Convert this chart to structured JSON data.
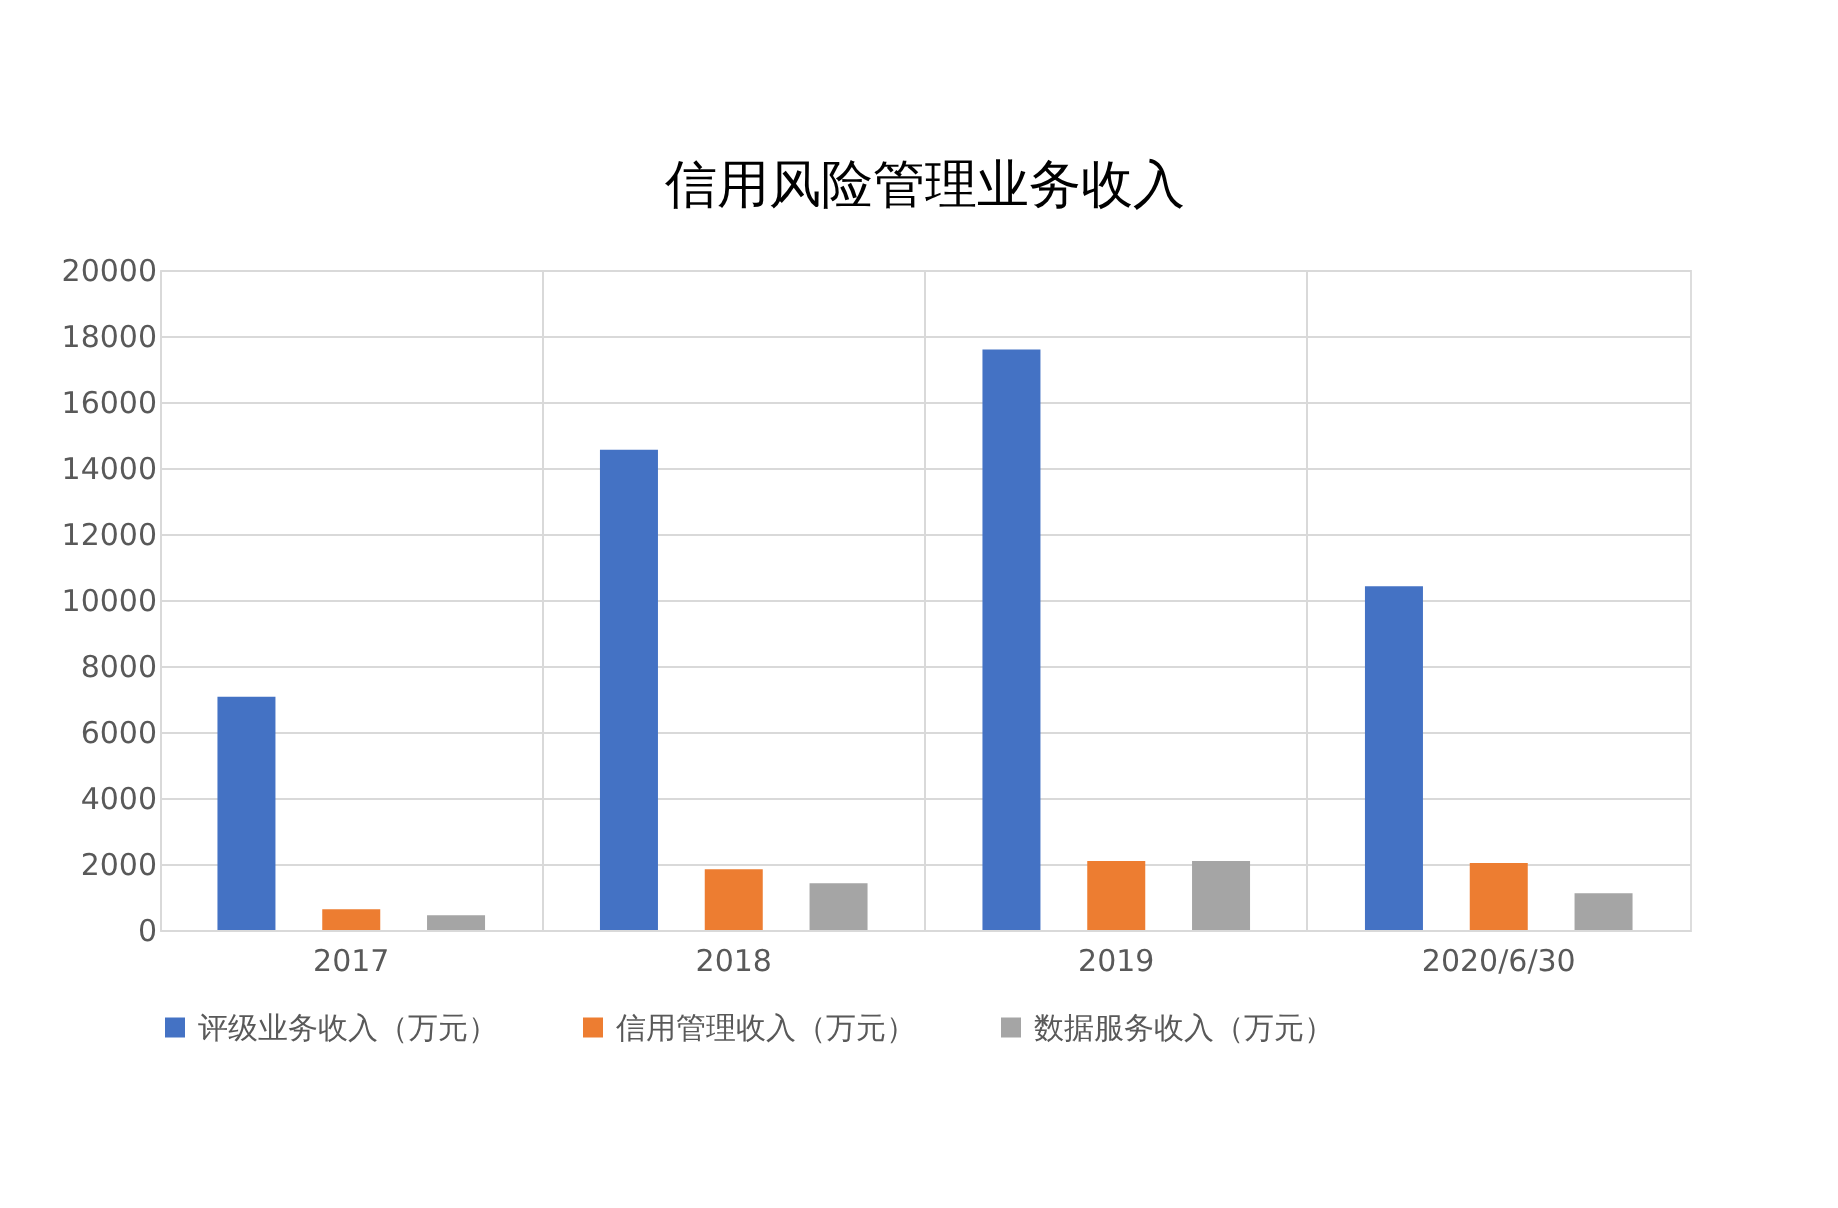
{
  "chart_data": {
    "type": "bar",
    "title": "信用风险管理业务收入",
    "categories": [
      "2017",
      "2018",
      "2019",
      "2020/6/30"
    ],
    "series": [
      {
        "name": "评级业务收入（万元）",
        "color": "#4472c4",
        "values": [
          7070,
          14550,
          17590,
          10420
        ]
      },
      {
        "name": "信用管理收入（万元）",
        "color": "#ed7d31",
        "values": [
          630,
          1840,
          2090,
          2030
        ]
      },
      {
        "name": "数据服务收入（万元）",
        "color": "#a5a5a5",
        "values": [
          450,
          1420,
          2090,
          1110
        ]
      }
    ],
    "ylim": [
      0,
      20000
    ],
    "yticks": [
      0,
      2000,
      4000,
      6000,
      8000,
      10000,
      12000,
      14000,
      16000,
      18000,
      20000
    ],
    "grid": true,
    "legend": "bottom"
  }
}
